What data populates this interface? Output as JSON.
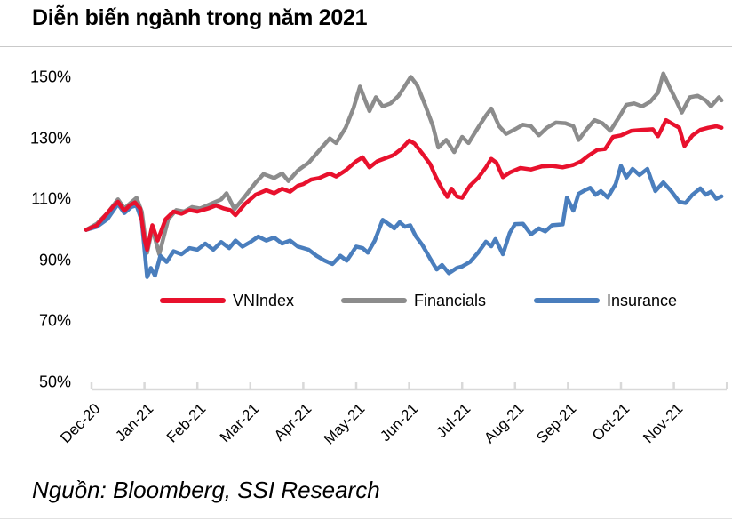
{
  "header": {
    "title": "Diễn biến ngành trong năm 2021"
  },
  "source": {
    "text": "Nguồn: Bloomberg, SSI Research"
  },
  "colors": {
    "vnindex": "#E8112D",
    "financials": "#8C8C8C",
    "insurance": "#4A7EBD",
    "axis": "#D9D9D9"
  },
  "chart_data": {
    "type": "line",
    "title": "Diễn biến ngành trong năm 2021",
    "xlabel": "",
    "ylabel": "",
    "x_unit": "months from Dec-2020",
    "x_tick_labels": [
      "Dec-20",
      "Jan-21",
      "Feb-21",
      "Mar-21",
      "Apr-21",
      "May-21",
      "Jun-21",
      "Jul-21",
      "Aug-21",
      "Sep-21",
      "Oct-21",
      "Nov-21"
    ],
    "y_tick_labels": [
      "150%",
      "130%",
      "110%",
      "90%",
      "70%",
      "50%"
    ],
    "y_tick_values": [
      150,
      130,
      110,
      90,
      70,
      50
    ],
    "ylim": [
      50,
      150
    ],
    "grid": false,
    "legend_position": "inside-center",
    "series": [
      {
        "name": "VNIndex",
        "color": "#E8112D",
        "points": [
          [
            -0.1,
            100
          ],
          [
            0.1,
            101.5
          ],
          [
            0.25,
            104.5
          ],
          [
            0.4,
            107.5
          ],
          [
            0.5,
            109.2
          ],
          [
            0.62,
            106.3
          ],
          [
            0.72,
            108
          ],
          [
            0.82,
            109
          ],
          [
            0.92,
            107
          ],
          [
            1.0,
            97
          ],
          [
            1.05,
            93.5
          ],
          [
            1.15,
            101.5
          ],
          [
            1.25,
            96.5
          ],
          [
            1.4,
            103.5
          ],
          [
            1.55,
            106
          ],
          [
            1.7,
            105.3
          ],
          [
            1.85,
            106.5
          ],
          [
            2.0,
            106
          ],
          [
            2.2,
            107
          ],
          [
            2.35,
            108
          ],
          [
            2.5,
            107
          ],
          [
            2.62,
            106.5
          ],
          [
            2.72,
            104.8
          ],
          [
            2.9,
            108.5
          ],
          [
            3.1,
            111.5
          ],
          [
            3.3,
            113
          ],
          [
            3.45,
            112
          ],
          [
            3.6,
            113.5
          ],
          [
            3.75,
            112.5
          ],
          [
            3.9,
            114.5
          ],
          [
            4.0,
            115
          ],
          [
            4.15,
            116.5
          ],
          [
            4.3,
            117
          ],
          [
            4.5,
            118.5
          ],
          [
            4.62,
            117.5
          ],
          [
            4.8,
            119.5
          ],
          [
            5.0,
            122.5
          ],
          [
            5.12,
            123.8
          ],
          [
            5.25,
            120.5
          ],
          [
            5.4,
            122.5
          ],
          [
            5.55,
            123.5
          ],
          [
            5.7,
            124.5
          ],
          [
            5.85,
            126.5
          ],
          [
            6.0,
            129.3
          ],
          [
            6.1,
            128.3
          ],
          [
            6.25,
            125
          ],
          [
            6.4,
            121.5
          ],
          [
            6.5,
            117.5
          ],
          [
            6.62,
            113.5
          ],
          [
            6.72,
            110.8
          ],
          [
            6.8,
            113.5
          ],
          [
            6.9,
            111
          ],
          [
            7.0,
            110.5
          ],
          [
            7.15,
            114.5
          ],
          [
            7.3,
            117
          ],
          [
            7.45,
            120.5
          ],
          [
            7.55,
            123.3
          ],
          [
            7.65,
            122
          ],
          [
            7.77,
            117.3
          ],
          [
            7.9,
            118.8
          ],
          [
            8.1,
            120.3
          ],
          [
            8.3,
            119.8
          ],
          [
            8.5,
            120.8
          ],
          [
            8.7,
            121
          ],
          [
            8.9,
            120.5
          ],
          [
            9.1,
            121.3
          ],
          [
            9.25,
            122.5
          ],
          [
            9.4,
            124.5
          ],
          [
            9.55,
            126.2
          ],
          [
            9.7,
            126.5
          ],
          [
            9.85,
            130.5
          ],
          [
            10.0,
            131
          ],
          [
            10.2,
            132.5
          ],
          [
            10.4,
            132.8
          ],
          [
            10.6,
            133
          ],
          [
            10.7,
            130.7
          ],
          [
            10.85,
            136
          ],
          [
            11.0,
            134.5
          ],
          [
            11.1,
            133.5
          ],
          [
            11.2,
            127.5
          ],
          [
            11.35,
            131
          ],
          [
            11.5,
            132.8
          ],
          [
            11.65,
            133.5
          ],
          [
            11.8,
            134
          ],
          [
            11.9,
            133.5
          ]
        ]
      },
      {
        "name": "Financials",
        "color": "#8C8C8C",
        "points": [
          [
            -0.1,
            100
          ],
          [
            0.1,
            102
          ],
          [
            0.3,
            105.5
          ],
          [
            0.5,
            110
          ],
          [
            0.62,
            107
          ],
          [
            0.75,
            109
          ],
          [
            0.85,
            110.5
          ],
          [
            0.95,
            106
          ],
          [
            1.05,
            92.5
          ],
          [
            1.15,
            100.5
          ],
          [
            1.28,
            92
          ],
          [
            1.45,
            103.5
          ],
          [
            1.6,
            106.5
          ],
          [
            1.75,
            106
          ],
          [
            1.9,
            107.5
          ],
          [
            2.05,
            107
          ],
          [
            2.25,
            108.5
          ],
          [
            2.45,
            110
          ],
          [
            2.55,
            112
          ],
          [
            2.7,
            106.8
          ],
          [
            2.9,
            111
          ],
          [
            3.1,
            115.5
          ],
          [
            3.25,
            118.3
          ],
          [
            3.45,
            117
          ],
          [
            3.6,
            118.5
          ],
          [
            3.72,
            116
          ],
          [
            3.9,
            119.5
          ],
          [
            4.1,
            122
          ],
          [
            4.3,
            126
          ],
          [
            4.5,
            130
          ],
          [
            4.62,
            128.5
          ],
          [
            4.8,
            133.5
          ],
          [
            4.95,
            140
          ],
          [
            5.07,
            147
          ],
          [
            5.17,
            142.5
          ],
          [
            5.25,
            139
          ],
          [
            5.37,
            143.5
          ],
          [
            5.5,
            140.5
          ],
          [
            5.65,
            141.5
          ],
          [
            5.8,
            144
          ],
          [
            5.95,
            148
          ],
          [
            6.03,
            150.2
          ],
          [
            6.15,
            147.5
          ],
          [
            6.3,
            141
          ],
          [
            6.45,
            134
          ],
          [
            6.55,
            127
          ],
          [
            6.7,
            129.5
          ],
          [
            6.85,
            125.5
          ],
          [
            7.0,
            130.5
          ],
          [
            7.12,
            128.5
          ],
          [
            7.3,
            133.5
          ],
          [
            7.45,
            137.5
          ],
          [
            7.55,
            139.8
          ],
          [
            7.7,
            134
          ],
          [
            7.83,
            131.5
          ],
          [
            8.0,
            133
          ],
          [
            8.15,
            134.5
          ],
          [
            8.3,
            134
          ],
          [
            8.45,
            131
          ],
          [
            8.6,
            133.5
          ],
          [
            8.77,
            135.2
          ],
          [
            8.95,
            135
          ],
          [
            9.1,
            134
          ],
          [
            9.2,
            129.5
          ],
          [
            9.35,
            133
          ],
          [
            9.5,
            136
          ],
          [
            9.65,
            135
          ],
          [
            9.8,
            132.5
          ],
          [
            10.0,
            138
          ],
          [
            10.1,
            141
          ],
          [
            10.25,
            141.5
          ],
          [
            10.4,
            140.5
          ],
          [
            10.55,
            142
          ],
          [
            10.7,
            145
          ],
          [
            10.8,
            151.3
          ],
          [
            10.9,
            147.5
          ],
          [
            11.0,
            144
          ],
          [
            11.15,
            138.5
          ],
          [
            11.3,
            143.5
          ],
          [
            11.45,
            144
          ],
          [
            11.6,
            142.5
          ],
          [
            11.7,
            140.5
          ],
          [
            11.85,
            143.5
          ],
          [
            11.9,
            142.5
          ]
        ]
      },
      {
        "name": "Insurance",
        "color": "#4A7EBD",
        "points": [
          [
            -0.1,
            100
          ],
          [
            0.1,
            101
          ],
          [
            0.3,
            103.5
          ],
          [
            0.5,
            108.5
          ],
          [
            0.62,
            105.5
          ],
          [
            0.75,
            107.5
          ],
          [
            0.85,
            108
          ],
          [
            0.95,
            103
          ],
          [
            1.05,
            84.5
          ],
          [
            1.12,
            87.5
          ],
          [
            1.2,
            85
          ],
          [
            1.3,
            91.5
          ],
          [
            1.42,
            89.5
          ],
          [
            1.55,
            93
          ],
          [
            1.7,
            92
          ],
          [
            1.85,
            94
          ],
          [
            2.0,
            93.5
          ],
          [
            2.15,
            95.5
          ],
          [
            2.3,
            93.5
          ],
          [
            2.45,
            96
          ],
          [
            2.6,
            94
          ],
          [
            2.72,
            96.5
          ],
          [
            2.85,
            94.5
          ],
          [
            3.0,
            96
          ],
          [
            3.15,
            97.8
          ],
          [
            3.3,
            96.5
          ],
          [
            3.45,
            97.5
          ],
          [
            3.6,
            95.5
          ],
          [
            3.75,
            96.5
          ],
          [
            3.9,
            94.5
          ],
          [
            4.1,
            93.5
          ],
          [
            4.25,
            91.5
          ],
          [
            4.4,
            90
          ],
          [
            4.55,
            88.8
          ],
          [
            4.7,
            91.5
          ],
          [
            4.82,
            89.9
          ],
          [
            5.0,
            94.5
          ],
          [
            5.12,
            94
          ],
          [
            5.22,
            92.5
          ],
          [
            5.35,
            96.5
          ],
          [
            5.5,
            103.3
          ],
          [
            5.62,
            101.8
          ],
          [
            5.72,
            100.5
          ],
          [
            5.82,
            102.5
          ],
          [
            5.92,
            101
          ],
          [
            6.02,
            101.5
          ],
          [
            6.12,
            98
          ],
          [
            6.25,
            95
          ],
          [
            6.4,
            90.5
          ],
          [
            6.52,
            87
          ],
          [
            6.62,
            88.5
          ],
          [
            6.75,
            85.8
          ],
          [
            6.9,
            87.5
          ],
          [
            7.0,
            88
          ],
          [
            7.15,
            89.5
          ],
          [
            7.3,
            92.5
          ],
          [
            7.45,
            96.1
          ],
          [
            7.55,
            94.6
          ],
          [
            7.63,
            97
          ],
          [
            7.77,
            92
          ],
          [
            7.9,
            99
          ],
          [
            8.0,
            101.9
          ],
          [
            8.15,
            102
          ],
          [
            8.3,
            98.5
          ],
          [
            8.45,
            100.5
          ],
          [
            8.57,
            99.5
          ],
          [
            8.7,
            101.5
          ],
          [
            8.9,
            101.8
          ],
          [
            8.98,
            110.6
          ],
          [
            9.1,
            106.3
          ],
          [
            9.2,
            111.8
          ],
          [
            9.32,
            113
          ],
          [
            9.42,
            113.8
          ],
          [
            9.52,
            111.5
          ],
          [
            9.62,
            112.7
          ],
          [
            9.75,
            110.6
          ],
          [
            9.9,
            115
          ],
          [
            10.0,
            121
          ],
          [
            10.1,
            117.2
          ],
          [
            10.22,
            120
          ],
          [
            10.35,
            118
          ],
          [
            10.5,
            120
          ],
          [
            10.65,
            112.7
          ],
          [
            10.8,
            115.6
          ],
          [
            10.95,
            112.7
          ],
          [
            11.1,
            109.2
          ],
          [
            11.22,
            108.8
          ],
          [
            11.35,
            111.5
          ],
          [
            11.5,
            113.6
          ],
          [
            11.6,
            111.5
          ],
          [
            11.7,
            112.5
          ],
          [
            11.8,
            110.2
          ],
          [
            11.9,
            111
          ]
        ]
      }
    ]
  }
}
